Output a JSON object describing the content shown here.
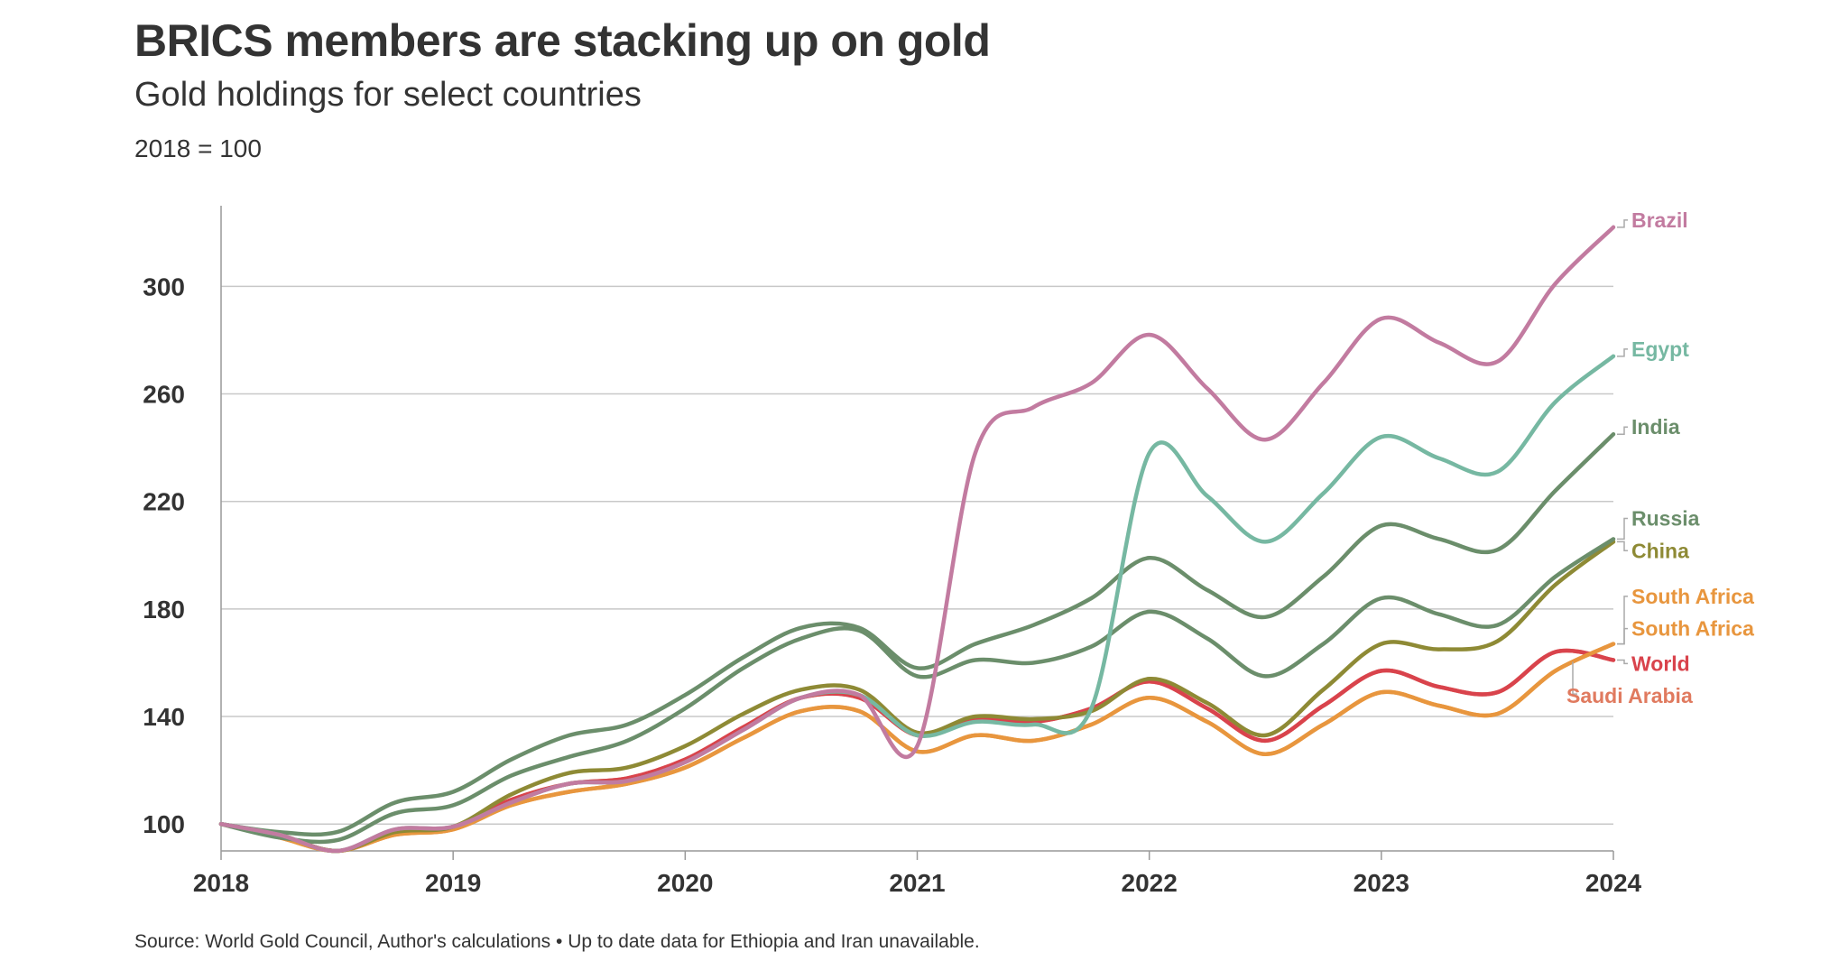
{
  "header": {
    "title": "BRICS members are stacking up on gold",
    "subtitle": "Gold holdings for select countries",
    "note": "2018 = 100"
  },
  "footer": {
    "source": "Source: World Gold Council, Author's calculations • Up to date data for Ethiopia and Iran unavailable."
  },
  "chart_data": {
    "type": "line",
    "title": "BRICS members are stacking up on gold",
    "subtitle": "Gold holdings for select countries",
    "ylabel": "2018 = 100",
    "xlim": [
      2018,
      2024
    ],
    "ylim": [
      90,
      330
    ],
    "yticks": [
      100,
      140,
      180,
      220,
      260,
      300
    ],
    "xticks": [
      2018,
      2019,
      2020,
      2021,
      2022,
      2023,
      2024
    ],
    "xtick_labels": [
      "2018",
      "2019",
      "2020",
      "2021",
      "2022",
      "2023",
      "2024"
    ],
    "ytick_labels": [
      "100",
      "140",
      "180",
      "220",
      "260",
      "300"
    ],
    "grid": true,
    "legend": "direct labels at right end",
    "x": [
      2018,
      2018.25,
      2018.5,
      2018.75,
      2019,
      2019.25,
      2019.5,
      2019.75,
      2020,
      2020.25,
      2020.5,
      2020.75,
      2021,
      2021.25,
      2021.5,
      2021.75,
      2022,
      2022.25,
      2022.5,
      2022.75,
      2023,
      2023.25,
      2023.5,
      2023.75,
      2024
    ],
    "series": [
      {
        "name": "Brazil",
        "color": "#c27ba0",
        "label_y": 322,
        "values": [
          100,
          96,
          90,
          98,
          99,
          108,
          115,
          116,
          123,
          135,
          147,
          148,
          129,
          238,
          255,
          264,
          282,
          262,
          243,
          264,
          288,
          279,
          272,
          301,
          322
        ]
      },
      {
        "name": "Egypt",
        "color": "#76b8a2",
        "label_y": 274,
        "values": [
          100,
          96,
          90,
          98,
          99,
          108,
          115,
          116,
          123,
          135,
          147,
          148,
          133,
          138,
          137,
          143,
          238,
          222,
          205,
          223,
          244,
          236,
          231,
          257,
          274
        ]
      },
      {
        "name": "India",
        "color": "#6b8e6b",
        "label_y": 245,
        "values": [
          100,
          97,
          97,
          108,
          112,
          124,
          133,
          137,
          148,
          162,
          173,
          173,
          158,
          167,
          174,
          184,
          199,
          187,
          177,
          192,
          211,
          206,
          202,
          224,
          245
        ]
      },
      {
        "name": "Russia",
        "color": "#6b8e6b",
        "label_y": 211,
        "values": [
          100,
          95,
          94,
          104,
          107,
          118,
          125,
          131,
          143,
          158,
          169,
          172,
          155,
          161,
          160,
          166,
          179,
          169,
          155,
          167,
          184,
          178,
          174,
          192,
          206
        ]
      },
      {
        "name": "China",
        "color": "#8e8a35",
        "label_y": 199,
        "values": [
          100,
          96,
          90,
          97,
          99,
          111,
          119,
          121,
          129,
          141,
          150,
          150,
          134,
          140,
          139,
          142,
          154,
          145,
          133,
          150,
          167,
          165,
          168,
          189,
          205
        ]
      },
      {
        "name": "South Africa",
        "color": "#e8963e",
        "label_y": 182,
        "values": [
          100,
          95,
          90,
          96,
          98,
          107,
          112,
          115,
          121,
          132,
          142,
          142,
          127,
          133,
          131,
          137,
          147,
          138,
          126,
          137,
          149,
          144,
          141,
          157,
          167
        ]
      },
      {
        "name": "South Africa",
        "color": "#e8963e",
        "label_y": 170,
        "values": [
          100,
          95,
          90,
          96,
          98,
          107,
          112,
          115,
          121,
          132,
          142,
          142,
          127,
          133,
          131,
          137,
          147,
          138,
          126,
          137,
          149,
          144,
          141,
          157,
          167
        ]
      },
      {
        "name": "World",
        "color": "#d9434c",
        "label_y": 157,
        "values": [
          100,
          96,
          90,
          97,
          99,
          109,
          115,
          117,
          124,
          136,
          147,
          147,
          133,
          139,
          138,
          143,
          153,
          143,
          131,
          144,
          157,
          151,
          149,
          164,
          161
        ]
      },
      {
        "name": "Saudi Arabia",
        "color": "#e07a5f",
        "label_y": 145,
        "values": [
          100,
          96,
          90,
          97,
          99,
          109,
          115,
          117,
          124,
          136,
          147,
          147,
          133,
          139,
          138,
          143,
          153,
          143,
          131,
          144,
          157,
          151,
          149,
          164,
          161
        ]
      }
    ]
  }
}
